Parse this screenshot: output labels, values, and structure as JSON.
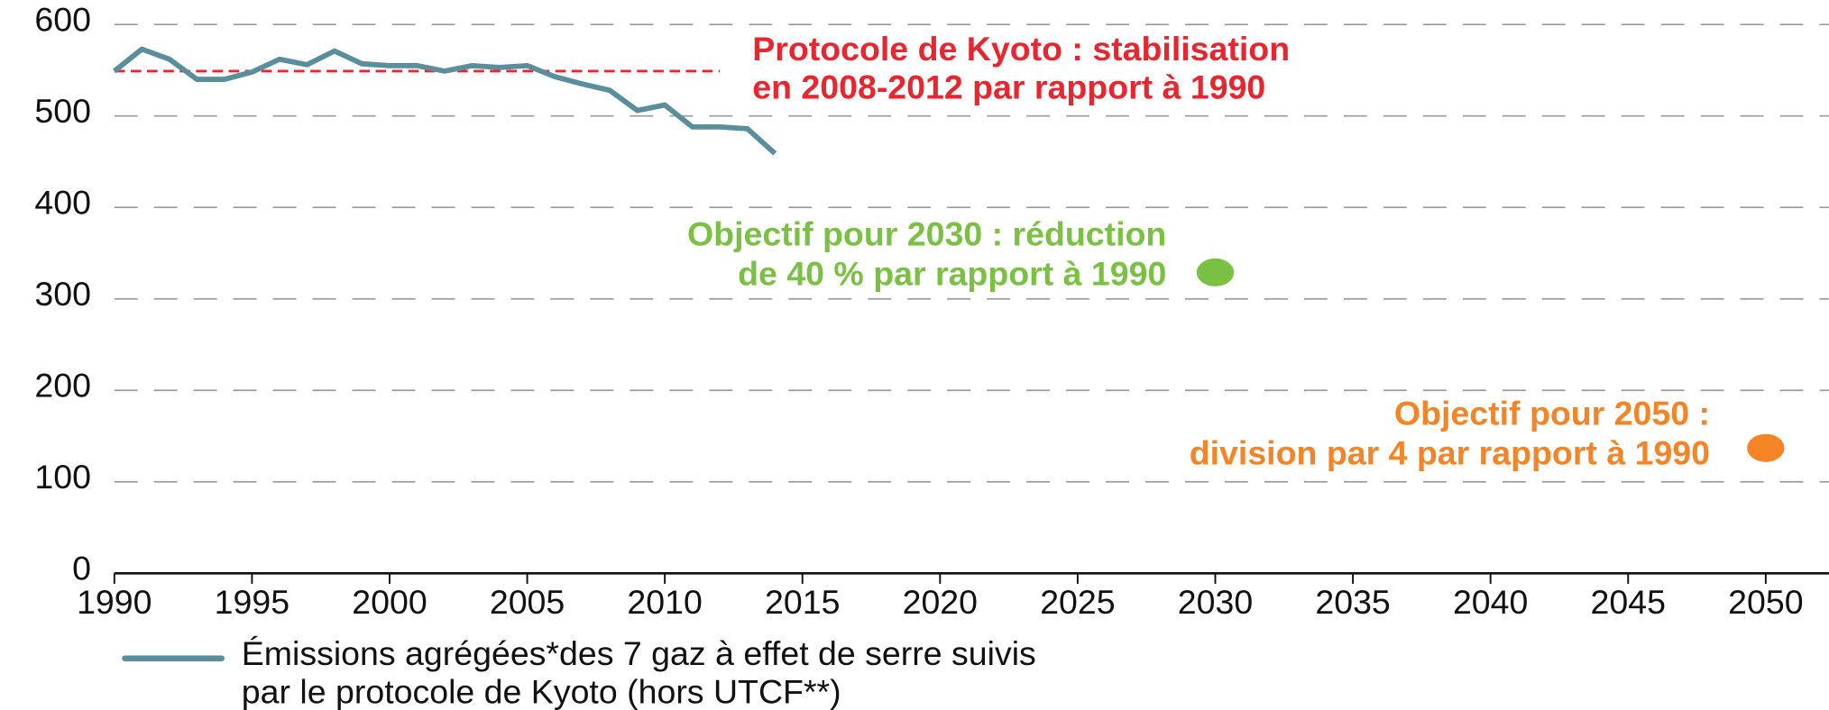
{
  "chart_data": {
    "type": "line",
    "x": [
      1990,
      1991,
      1992,
      1993,
      1994,
      1995,
      1996,
      1997,
      1998,
      1999,
      2000,
      2001,
      2002,
      2003,
      2004,
      2005,
      2006,
      2007,
      2008,
      2009,
      2010,
      2011,
      2012,
      2013,
      2014
    ],
    "series": [
      {
        "name": [
          "Émissions agrégées*des 7 gaz à effet de serre suivis",
          "par le protocole de Kyoto (hors UTCF**)"
        ],
        "color": "#5a8e9c",
        "values": [
          549,
          573,
          562,
          540,
          540,
          548,
          562,
          556,
          571,
          557,
          555,
          555,
          549,
          555,
          553,
          555,
          543,
          535,
          528,
          506,
          512,
          488,
          488,
          486,
          459
        ]
      }
    ],
    "reference_line": {
      "x": [
        1990,
        2012
      ],
      "values": [
        549,
        549
      ],
      "color": "#e8262f",
      "text": [
        "Protocole de Kyoto : stabilisation",
        "en 2008-2012 par rapport à 1990"
      ]
    },
    "targets": [
      {
        "x": 2030,
        "value": 329,
        "color": "#7ac143",
        "text": [
          "Objectif pour 2030 : réduction",
          "de 40 % par rapport à 1990"
        ]
      },
      {
        "x": 2050,
        "value": 137,
        "color": "#f58426",
        "text": [
          "Objectif pour 2050 :",
          "division par 4 par rapport à 1990"
        ]
      }
    ],
    "xlim": [
      1990,
      2052
    ],
    "xticks": [
      1990,
      1995,
      2000,
      2005,
      2010,
      2015,
      2020,
      2025,
      2030,
      2035,
      2040,
      2045,
      2050
    ],
    "ylim": [
      0,
      600
    ],
    "yticks": [
      0,
      100,
      200,
      300,
      400,
      500,
      600
    ],
    "grid": true
  }
}
